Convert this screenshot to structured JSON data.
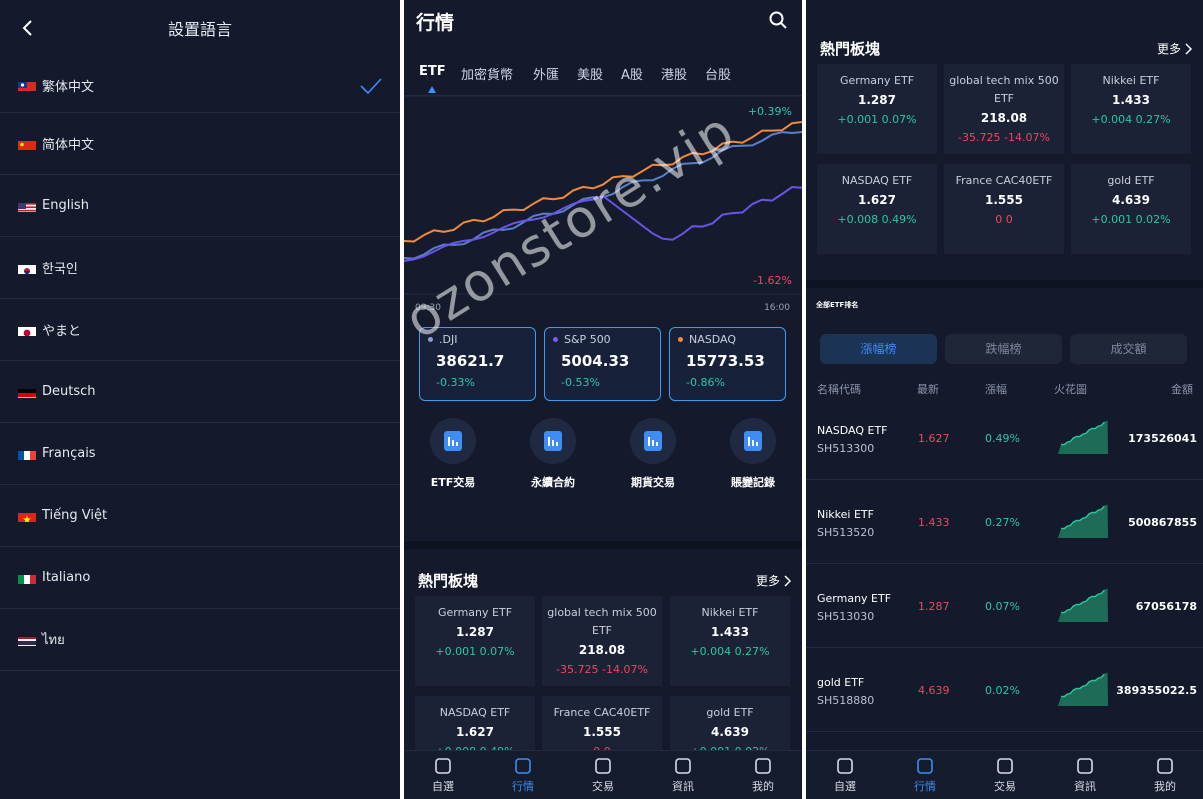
{
  "colors": {
    "bg": "#141a2b",
    "accent": "#3d8df5",
    "up": "#26c9a0",
    "down": "#f0455f"
  },
  "lang_screen": {
    "title": "設置語言",
    "languages": [
      {
        "label": "繁体中文",
        "flag": "tw-flag-icon",
        "selected": true
      },
      {
        "label": "简体中文",
        "flag": "cn-flag-icon"
      },
      {
        "label": "English",
        "flag": "us-flag-icon"
      },
      {
        "label": "한국인",
        "flag": "kr-flag-icon"
      },
      {
        "label": "やまと",
        "flag": "jp-flag-icon"
      },
      {
        "label": "Deutsch",
        "flag": "de-flag-icon"
      },
      {
        "label": "Français",
        "flag": "fr-flag-icon"
      },
      {
        "label": "Tiếng Việt",
        "flag": "vn-flag-icon"
      },
      {
        "label": "Italiano",
        "flag": "it-flag-icon"
      },
      {
        "label": "ไทย",
        "flag": "th-flag-icon"
      }
    ]
  },
  "market": {
    "title": "行情",
    "tabs": [
      "ETF",
      "加密貨幣",
      "外匯",
      "美股",
      "A股",
      "港股",
      "台股"
    ],
    "chart": {
      "top_label": "+0.39%",
      "bottom_label": "-1.62%",
      "time_start": "09:30",
      "time_end": "16:00"
    },
    "indices": [
      {
        "name": ".DJI",
        "value": "38621.7",
        "change": "-0.33%",
        "color": "#8c9bd6"
      },
      {
        "name": "S&P 500",
        "value": "5004.33",
        "change": "-0.53%",
        "color": "#7a5cf0"
      },
      {
        "name": "NASDAQ",
        "value": "15773.53",
        "change": "-0.86%",
        "color": "#f08a3c"
      }
    ],
    "quick": [
      "ETF交易",
      "永續合約",
      "期貨交易",
      "賬變記錄"
    ],
    "hot_title": "熱門板塊",
    "more": "更多",
    "hot": [
      {
        "name": "Germany ETF",
        "price": "1.287",
        "chg": "+0.001",
        "pct": "0.07%",
        "dir": "up"
      },
      {
        "name": "global tech mix 500 ETF",
        "price": "218.08",
        "chg": "-35.725",
        "pct": "-14.07%",
        "dir": "down"
      },
      {
        "name": "Nikkei ETF",
        "price": "1.433",
        "chg": "+0.004",
        "pct": "0.27%",
        "dir": "up"
      },
      {
        "name": "NASDAQ ETF",
        "price": "1.627",
        "chg": "+0.008",
        "pct": "0.49%",
        "dir": "up"
      },
      {
        "name": "France CAC40ETF",
        "price": "1.555",
        "chg": "0",
        "pct": "0",
        "dir": "down"
      },
      {
        "name": "gold ETF",
        "price": "4.639",
        "chg": "+0.001",
        "pct": "0.02%",
        "dir": "up"
      }
    ]
  },
  "nav": {
    "items": [
      "自選",
      "行情",
      "交易",
      "資訊",
      "我的"
    ],
    "active": 1
  },
  "ranking": {
    "title": "全部ETF排名",
    "segments": [
      "漲幅榜",
      "跌幅榜",
      "成交額"
    ],
    "columns": [
      "名稱代碼",
      "最新",
      "漲幅",
      "火花圖",
      "金額"
    ],
    "rows": [
      {
        "name": "NASDAQ ETF",
        "code": "SH513300",
        "price": "1.627",
        "pct": "0.49%",
        "vol": "173526041"
      },
      {
        "name": "Nikkei ETF",
        "code": "SH513520",
        "price": "1.433",
        "pct": "0.27%",
        "vol": "500867855"
      },
      {
        "name": "Germany ETF",
        "code": "SH513030",
        "price": "1.287",
        "pct": "0.07%",
        "vol": "67056178"
      },
      {
        "name": "gold ETF",
        "code": "SH518880",
        "price": "4.639",
        "pct": "0.02%",
        "vol": "389355022.5"
      }
    ]
  },
  "watermark": "ozonstore.vip"
}
